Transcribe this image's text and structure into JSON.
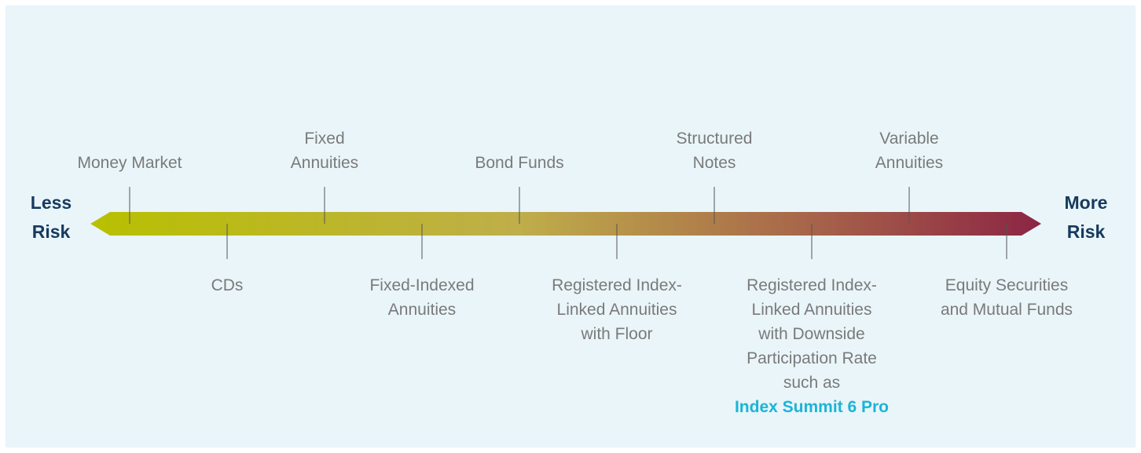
{
  "left_label": {
    "lines": [
      "Less",
      "Risk"
    ]
  },
  "right_label": {
    "lines": [
      "More",
      "Risk"
    ]
  },
  "above": [
    {
      "lines": [
        "Money Market"
      ]
    },
    {
      "lines": [
        "Fixed",
        "Annuities"
      ]
    },
    {
      "lines": [
        "Bond Funds"
      ]
    },
    {
      "lines": [
        "Structured",
        "Notes"
      ]
    },
    {
      "lines": [
        "Variable",
        "Annuities"
      ]
    }
  ],
  "below": [
    {
      "lines": [
        "CDs"
      ]
    },
    {
      "lines": [
        "Fixed-Indexed",
        "Annuities"
      ]
    },
    {
      "lines": [
        "Registered Index-",
        "Linked Annuities",
        "with Floor"
      ]
    },
    {
      "lines": [
        "Registered Index-",
        "Linked Annuities",
        "with Downside",
        "Participation Rate",
        "such as"
      ],
      "highlight": "Index Summit 6 Pro"
    },
    {
      "lines": [
        "Equity Securities",
        "and Mutual Funds"
      ]
    }
  ]
}
